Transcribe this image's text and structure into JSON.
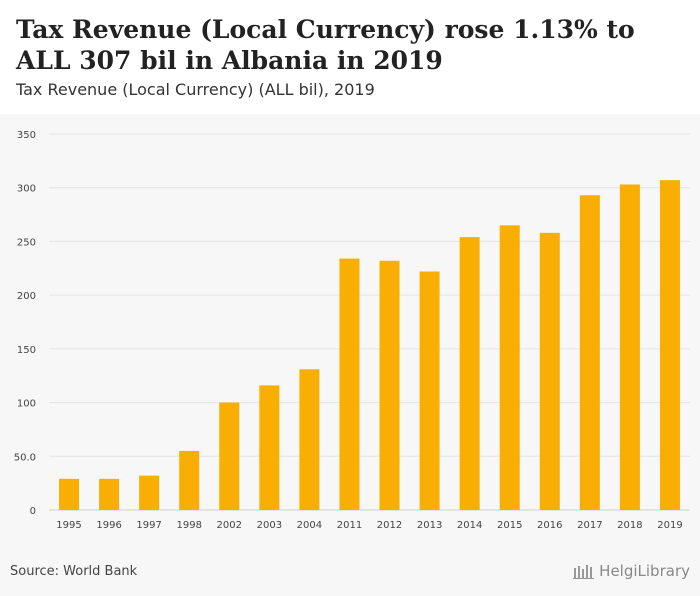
{
  "header": {
    "title": "Tax Revenue (Local Currency) rose 1.13% to ALL 307 bil in Albania in 2019",
    "subtitle": "Tax Revenue (Local Currency) (ALL bil), 2019"
  },
  "footer": {
    "source": "Source: World Bank",
    "brand": "HelgiLibrary"
  },
  "colors": {
    "bar": "#f9ae03",
    "grid": "#e4e4e4",
    "background": "#f7f7f7"
  },
  "chart_data": {
    "type": "bar",
    "categories": [
      "1995",
      "1996",
      "1997",
      "1998",
      "2002",
      "2003",
      "2004",
      "2011",
      "2012",
      "2013",
      "2014",
      "2015",
      "2016",
      "2017",
      "2018",
      "2019"
    ],
    "values": [
      29,
      29,
      32,
      55,
      100,
      116,
      131,
      234,
      232,
      222,
      254,
      265,
      258,
      293,
      303,
      307
    ],
    "ylim": [
      0,
      350
    ],
    "yticks": [
      0,
      50,
      100,
      150,
      200,
      250,
      300,
      350
    ],
    "ytick_labels": [
      "0",
      "50.0",
      "100",
      "150",
      "200",
      "250",
      "300",
      "350"
    ],
    "xlabel": "",
    "ylabel": "",
    "grid": true
  }
}
